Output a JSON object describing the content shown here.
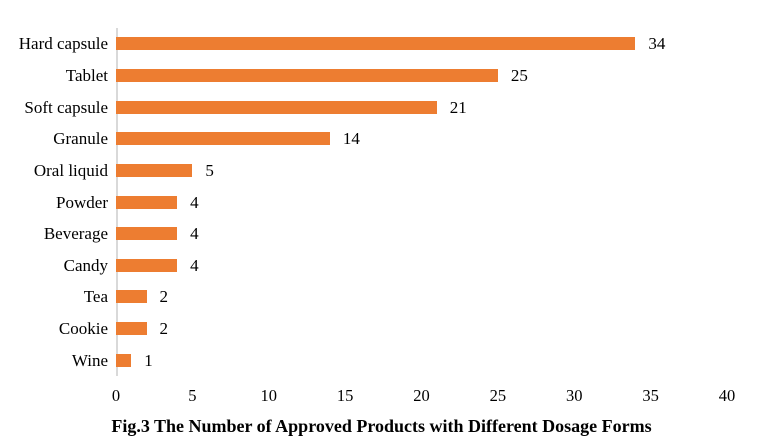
{
  "chart_data": {
    "type": "bar",
    "orientation": "horizontal",
    "title": "Fig.3 The Number of Approved Products with Different Dosage Forms",
    "categories": [
      "Hard capsule",
      "Tablet",
      "Soft capsule",
      "Granule",
      "Oral liquid",
      "Powder",
      "Beverage",
      "Candy",
      "Tea",
      "Cookie",
      "Wine"
    ],
    "values": [
      34,
      25,
      21,
      14,
      5,
      4,
      4,
      4,
      2,
      2,
      1
    ],
    "data_labels": [
      34,
      25,
      21,
      14,
      5,
      4,
      4,
      4,
      2,
      2,
      1
    ],
    "xlabel": "",
    "ylabel": "",
    "xlim": [
      0,
      40
    ],
    "xticks": [
      0,
      5,
      10,
      15,
      20,
      25,
      30,
      35,
      40
    ],
    "grid": false,
    "legend": false,
    "bar_color": "#ED7D31",
    "axis_line_color": "#D9D9D9",
    "text_color": "#000000"
  }
}
